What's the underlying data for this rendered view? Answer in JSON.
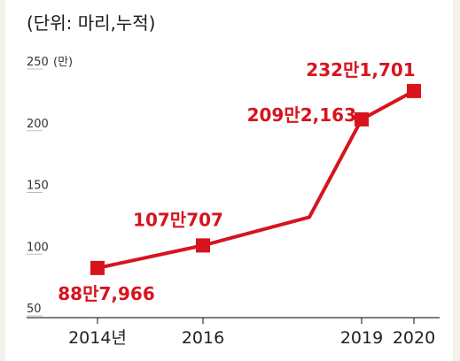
{
  "unit_note": "(단위: 마리,누적)",
  "colors": {
    "series": "#d7141e",
    "axis": "#333333",
    "gridline": "#bdbdbd"
  },
  "chart_data": {
    "type": "line",
    "title": "",
    "xlabel": "",
    "ylabel": "",
    "y_unit_label": "(만)",
    "ylim": [
      50,
      250
    ],
    "yticks": [
      50,
      100,
      150,
      200,
      250
    ],
    "xticks": [
      {
        "x": 2014,
        "label": "2014년"
      },
      {
        "x": 2016,
        "label": "2016"
      },
      {
        "x": 2019,
        "label": "2019"
      },
      {
        "x": 2020,
        "label": "2020"
      }
    ],
    "grid": false,
    "series": [
      {
        "points": [
          {
            "x": 2014,
            "y": 88.7966,
            "label": "88만7,966",
            "marker": true
          },
          {
            "x": 2016,
            "y": 107.0707,
            "label": "107만707",
            "marker": true
          },
          {
            "x": 2018,
            "y": 130,
            "label": "",
            "marker": false
          },
          {
            "x": 2019,
            "y": 209.2163,
            "label": "209만2,163",
            "marker": true
          },
          {
            "x": 2020,
            "y": 232.1701,
            "label": "232만1,701",
            "marker": true
          }
        ]
      }
    ]
  }
}
